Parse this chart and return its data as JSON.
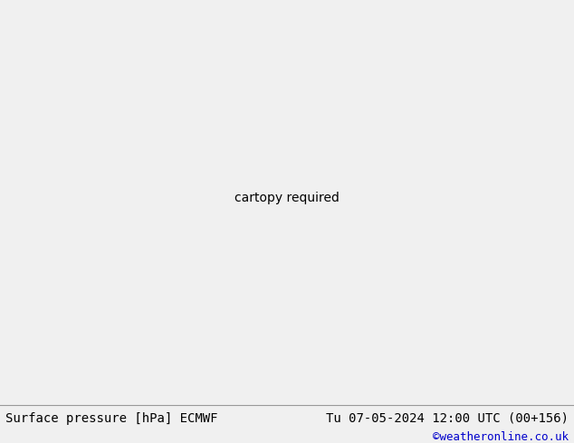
{
  "title_left": "Surface pressure [hPa] ECMWF",
  "title_right": "Tu 07-05-2024 12:00 UTC (00+156)",
  "copyright": "©weatheronline.co.uk",
  "land_color": "#c8e8a0",
  "sea_color": "#d8d8d8",
  "border_color": "#888888",
  "isobar_blue": "#0000cc",
  "isobar_red": "#cc0000",
  "isobar_black": "#000000",
  "bottom_bar_color": "#f0f0f0",
  "copyright_color": "#0000cc",
  "font_size_bottom": 10,
  "fig_width": 6.34,
  "fig_height": 4.9,
  "dpi": 100,
  "lon_min": -25,
  "lon_max": 75,
  "lat_min": -60,
  "lat_max": 45
}
